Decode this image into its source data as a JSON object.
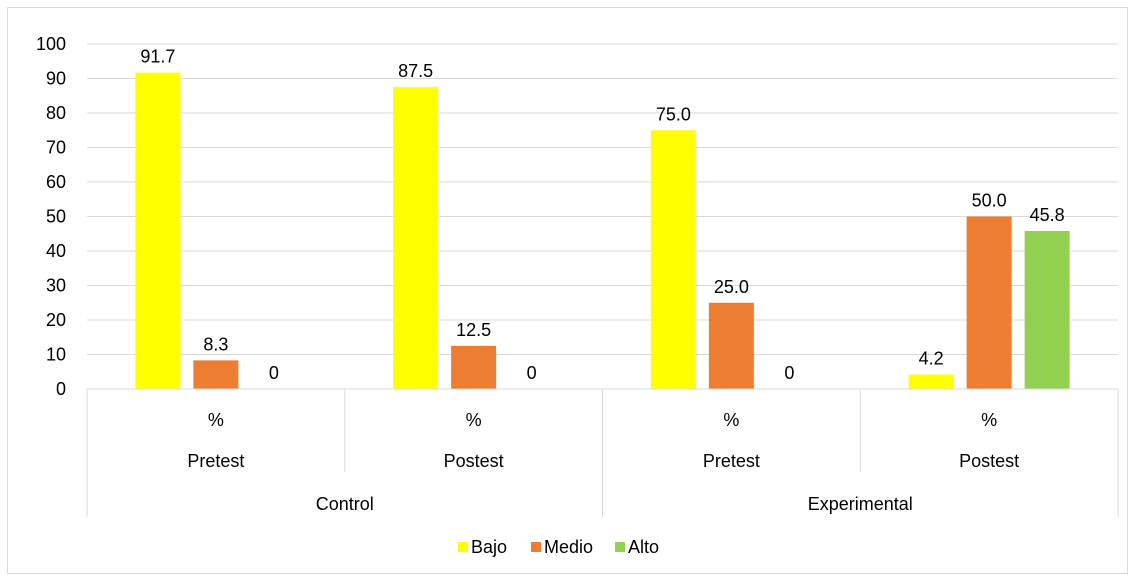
{
  "chart_data": {
    "type": "bar",
    "title": "",
    "xlabel": "",
    "ylabel": "",
    "ylim": [
      0,
      100
    ],
    "yticks": [
      0,
      10,
      20,
      30,
      40,
      50,
      60,
      70,
      80,
      90,
      100
    ],
    "grid": true,
    "legend_position": "bottom",
    "categories": [
      {
        "unit": "%",
        "phase": "Pretest",
        "group": "Control"
      },
      {
        "unit": "%",
        "phase": "Postest",
        "group": "Control"
      },
      {
        "unit": "%",
        "phase": "Pretest",
        "group": "Experimental"
      },
      {
        "unit": "%",
        "phase": "Postest",
        "group": "Experimental"
      }
    ],
    "groups": [
      "Control",
      "Experimental"
    ],
    "series": [
      {
        "name": "Bajo",
        "color": "#ffff00",
        "values": [
          91.7,
          87.5,
          75.0,
          4.2
        ],
        "labels": [
          "91.7",
          "87.5",
          "75.0",
          "4.2"
        ]
      },
      {
        "name": "Medio",
        "color": "#ed7d31",
        "values": [
          8.3,
          12.5,
          25.0,
          50.0
        ],
        "labels": [
          "8.3",
          "12.5",
          "25.0",
          "50.0"
        ]
      },
      {
        "name": "Alto",
        "color": "#92d050",
        "values": [
          0,
          0,
          0,
          45.8
        ],
        "labels": [
          "0",
          "0",
          "0",
          "45.8"
        ]
      }
    ]
  }
}
